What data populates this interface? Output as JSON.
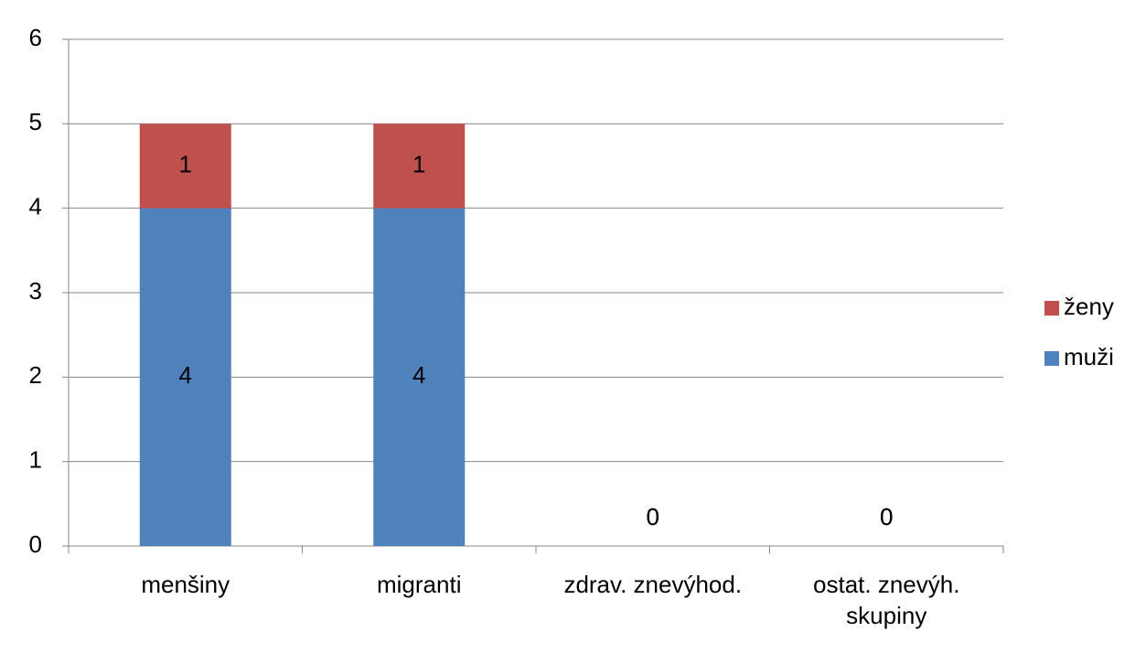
{
  "chart_data": {
    "type": "bar",
    "stacked": true,
    "categories": [
      "menšiny",
      "migranti",
      "zdrav. znevýhod.",
      "ostat. znevýh. skupiny"
    ],
    "series": [
      {
        "name": "muži",
        "color": "#4f81bd",
        "values": [
          4,
          4,
          0,
          0
        ]
      },
      {
        "name": "ženy",
        "color": "#c0504d",
        "values": [
          1,
          1,
          0,
          0
        ]
      }
    ],
    "ylim": [
      0,
      6
    ],
    "yticks": [
      0,
      1,
      2,
      3,
      4,
      5,
      6
    ],
    "grid": true,
    "legend": "right"
  }
}
